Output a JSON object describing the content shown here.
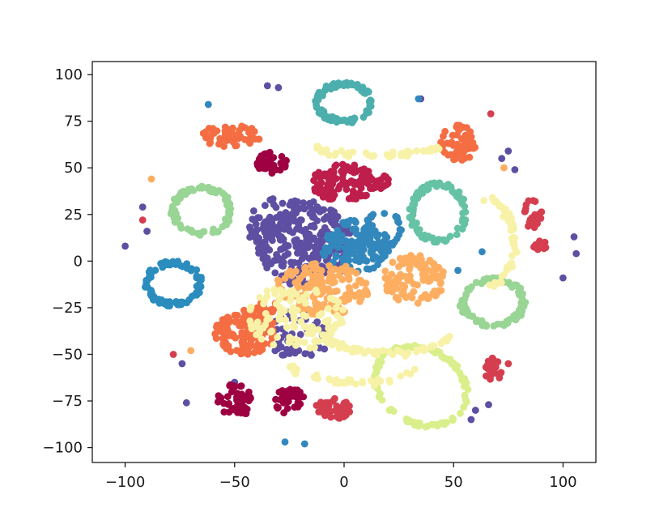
{
  "chart_data": {
    "type": "scatter",
    "title": "",
    "xlabel": "",
    "ylabel": "",
    "xlim": [
      -115,
      115
    ],
    "ylim": [
      -108,
      107
    ],
    "x_ticks": [
      -100,
      -50,
      0,
      50,
      100
    ],
    "y_ticks": [
      -100,
      -75,
      -50,
      -25,
      0,
      25,
      50,
      75,
      100
    ],
    "x_tick_labels": [
      "−100",
      "−50",
      "0",
      "50",
      "100"
    ],
    "y_tick_labels": [
      "−100",
      "−75",
      "−50",
      "−25",
      "0",
      "25",
      "50",
      "75",
      "100"
    ],
    "grid": false,
    "legend": "none",
    "point_radius_px": 4.4,
    "series": [
      {
        "color": "#4cafae",
        "clusters": [
          {
            "shape": "ring",
            "cx": 0,
            "cy": 85,
            "rx": 12,
            "ry": 10,
            "n": 90,
            "width": 2.5
          }
        ]
      },
      {
        "color": "#2b8cbe",
        "clusters": [
          {
            "shape": "ring",
            "cx": -78,
            "cy": -12,
            "rx": 12,
            "ry": 11,
            "n": 90,
            "width": 2.5
          }
        ]
      },
      {
        "color": "#5e4fa2",
        "clusters": [
          {
            "shape": "blob",
            "cx": -18,
            "cy": 10,
            "rx": 22,
            "ry": 24,
            "n": 260
          },
          {
            "shape": "blob",
            "cx": -35,
            "cy": 20,
            "rx": 10,
            "ry": 14,
            "n": 40
          },
          {
            "shape": "blob",
            "cx": -20,
            "cy": -40,
            "rx": 14,
            "ry": 15,
            "n": 50
          }
        ],
        "points": [
          [
            -35,
            94
          ],
          [
            -30,
            93
          ],
          [
            -100,
            8
          ],
          [
            -92,
            29
          ],
          [
            -90,
            16
          ],
          [
            -75,
            35
          ],
          [
            -72,
            -76
          ],
          [
            -74,
            -55
          ],
          [
            -50,
            -65
          ],
          [
            35,
            87
          ],
          [
            75,
            59
          ],
          [
            72,
            55
          ],
          [
            78,
            49
          ],
          [
            66,
            -77
          ],
          [
            60,
            -80
          ],
          [
            58,
            -85
          ],
          [
            100,
            -9
          ],
          [
            105,
            13
          ],
          [
            106,
            4
          ]
        ]
      },
      {
        "color": "#3288bd",
        "clusters": [
          {
            "shape": "blob",
            "cx": 5,
            "cy": 8,
            "rx": 16,
            "ry": 14,
            "n": 140
          },
          {
            "shape": "ring",
            "cx": 18,
            "cy": 17,
            "rx": 8,
            "ry": 9,
            "n": 40,
            "width": 1.5
          }
        ],
        "points": [
          [
            -62,
            84
          ],
          [
            34,
            87
          ],
          [
            -27,
            -97
          ],
          [
            -18,
            -98
          ],
          [
            63,
            5
          ],
          [
            52,
            -5
          ]
        ]
      },
      {
        "color": "#fdae61",
        "clusters": [
          {
            "shape": "blob",
            "cx": -10,
            "cy": -15,
            "rx": 22,
            "ry": 14,
            "n": 160
          },
          {
            "shape": "blob",
            "cx": 32,
            "cy": -10,
            "rx": 14,
            "ry": 14,
            "n": 110
          }
        ],
        "points": [
          [
            -88,
            44
          ],
          [
            -70,
            -48
          ],
          [
            73,
            50
          ]
        ]
      },
      {
        "color": "#f46d43",
        "clusters": [
          {
            "shape": "blob",
            "cx": -45,
            "cy": -38,
            "rx": 14,
            "ry": 12,
            "n": 130
          },
          {
            "shape": "blob",
            "cx": -52,
            "cy": 67,
            "rx": 14,
            "ry": 6,
            "n": 55
          },
          {
            "shape": "blob",
            "cx": 52,
            "cy": 63,
            "rx": 8,
            "ry": 10,
            "n": 60
          },
          {
            "shape": "blob",
            "cx": -35,
            "cy": -25,
            "rx": 5,
            "ry": 5,
            "n": 15
          }
        ]
      },
      {
        "color": "#d53e4f",
        "clusters": [
          {
            "shape": "blob",
            "cx": -5,
            "cy": -79,
            "rx": 8,
            "ry": 6,
            "n": 50
          },
          {
            "shape": "blob",
            "cx": 68,
            "cy": -58,
            "rx": 4,
            "ry": 7,
            "n": 20
          },
          {
            "shape": "blob",
            "cx": 86,
            "cy": 25,
            "rx": 5,
            "ry": 8,
            "n": 22
          },
          {
            "shape": "blob",
            "cx": 90,
            "cy": 7,
            "rx": 4,
            "ry": 4,
            "n": 12
          }
        ],
        "points": [
          [
            -78,
            -50
          ],
          [
            67,
            79
          ],
          [
            -92,
            22
          ],
          [
            75,
            -55
          ]
        ]
      },
      {
        "color": "#be1e4b",
        "clusters": [
          {
            "shape": "blob",
            "cx": 0,
            "cy": 42,
            "rx": 15,
            "ry": 10,
            "n": 110
          },
          {
            "shape": "blob",
            "cx": 16,
            "cy": 42,
            "rx": 6,
            "ry": 4,
            "n": 20
          }
        ]
      },
      {
        "color": "#9e0142",
        "clusters": [
          {
            "shape": "blob",
            "cx": -33,
            "cy": 53,
            "rx": 7,
            "ry": 6,
            "n": 40
          },
          {
            "shape": "blob",
            "cx": -50,
            "cy": -75,
            "rx": 8,
            "ry": 9,
            "n": 50
          },
          {
            "shape": "blob",
            "cx": -25,
            "cy": -75,
            "rx": 7,
            "ry": 7,
            "n": 40
          }
        ]
      },
      {
        "color": "#66c2a5",
        "clusters": [
          {
            "shape": "ring",
            "cx": 43,
            "cy": 26,
            "rx": 12,
            "ry": 15,
            "n": 90,
            "width": 2.5
          }
        ]
      },
      {
        "color": "#99d594",
        "clusters": [
          {
            "shape": "ring",
            "cx": 68,
            "cy": -22,
            "rx": 14,
            "ry": 12,
            "n": 90,
            "width": 2.5
          },
          {
            "shape": "ring",
            "cx": -65,
            "cy": 27,
            "rx": 13,
            "ry": 12,
            "n": 80,
            "width": 2.5
          }
        ]
      },
      {
        "color": "#d9ef8b",
        "clusters": [
          {
            "shape": "ring",
            "cx": 35,
            "cy": -67,
            "rx": 19,
            "ry": 23,
            "n": 110,
            "width": 1.8,
            "tilt": 0.75
          }
        ]
      },
      {
        "color": "#f7f2a7",
        "clusters": [
          {
            "shape": "arc",
            "cx": 15,
            "cy": 61,
            "rx": 27,
            "ry": 4,
            "from": 3.1,
            "to": 6.3,
            "n": 50
          },
          {
            "shape": "arc",
            "cx": 20,
            "cy": -35,
            "rx": 32,
            "ry": 14,
            "from": 3.5,
            "to": 5.8,
            "n": 60
          },
          {
            "shape": "arc",
            "cx": 60,
            "cy": 10,
            "rx": 18,
            "ry": 25,
            "from": -1.2,
            "to": 1.3,
            "n": 50
          },
          {
            "shape": "blob",
            "cx": -22,
            "cy": -30,
            "rx": 22,
            "ry": 18,
            "n": 110
          },
          {
            "shape": "arc",
            "cx": 5,
            "cy": -55,
            "rx": 30,
            "ry": 10,
            "from": 3.3,
            "to": 5.9,
            "n": 40
          }
        ]
      }
    ]
  }
}
